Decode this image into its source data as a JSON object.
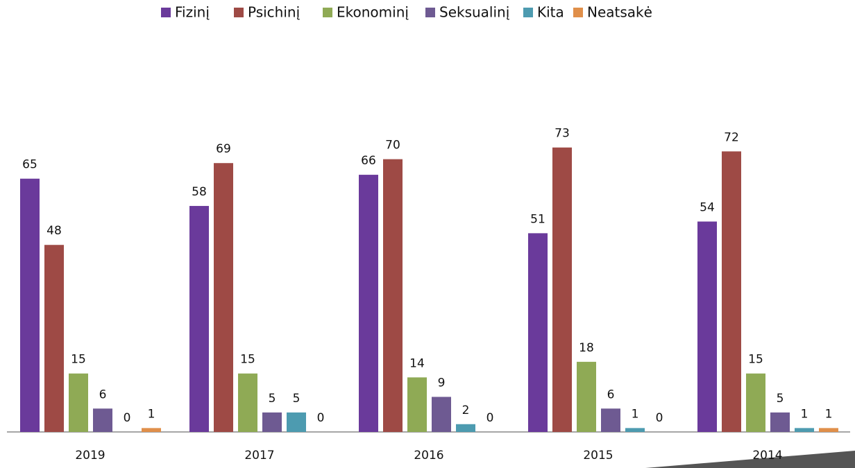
{
  "chart_data": {
    "type": "bar",
    "categories": [
      "2019",
      "2017",
      "2016",
      "2015",
      "2014"
    ],
    "series": [
      {
        "name": "Fizinį",
        "color": "#6a3a9b",
        "values": [
          65,
          58,
          66,
          51,
          54
        ]
      },
      {
        "name": "Psichinį",
        "color": "#9e4a45",
        "values": [
          48,
          69,
          70,
          73,
          72
        ]
      },
      {
        "name": "Ekonominį",
        "color": "#8faa55",
        "values": [
          15,
          15,
          14,
          18,
          15
        ]
      },
      {
        "name": "Seksualinį",
        "color": "#6e5a92",
        "values": [
          6,
          5,
          9,
          6,
          5
        ]
      },
      {
        "name": "Kita",
        "color": "#4d9bb0",
        "values": [
          0,
          5,
          2,
          1,
          1
        ]
      },
      {
        "name": "Neatsakė",
        "color": "#e08f4a",
        "values": [
          1,
          0,
          0,
          0,
          1
        ]
      }
    ],
    "legend": "top"
  }
}
